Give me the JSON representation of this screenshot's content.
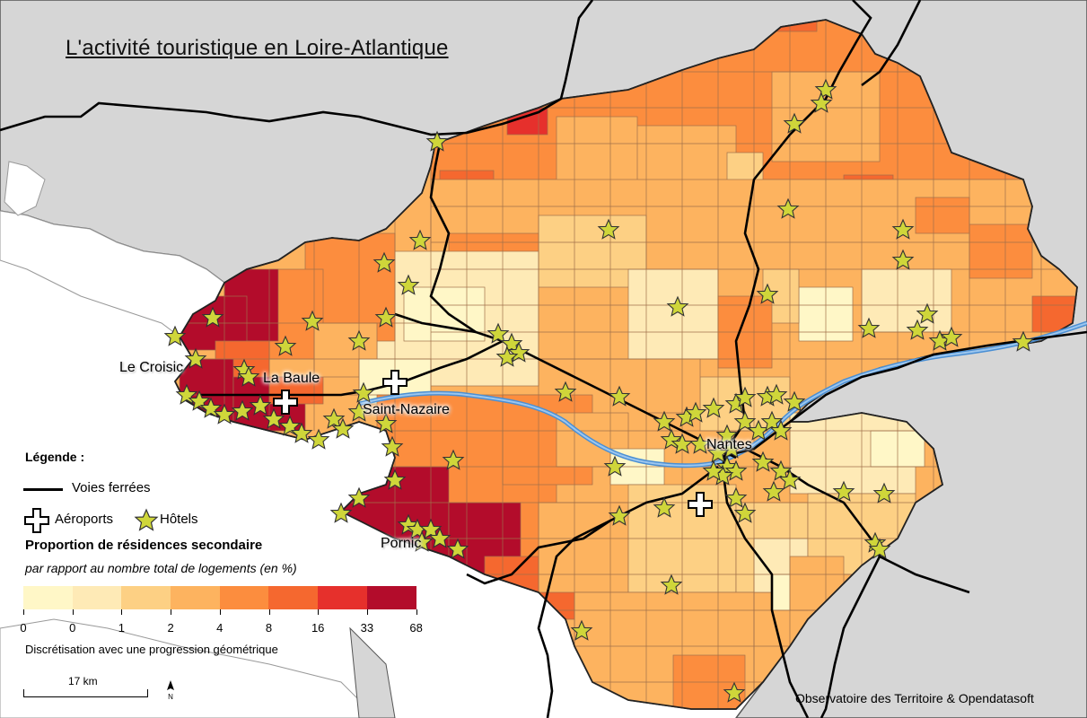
{
  "title": "L'activité touristique en Loire-Atlantique",
  "legend": {
    "heading": "Légende :",
    "railways_label": "Voies ferrées",
    "airports_label": "Aéroports",
    "hotels_label": "Hôtels",
    "proportion_title": "Proportion de résidences secondaire",
    "proportion_subtitle": "par rapport au nombre total de logements (en %)",
    "class_breaks": [
      "0",
      "0",
      "1",
      "2",
      "4",
      "8",
      "16",
      "33",
      "68"
    ],
    "class_colors": [
      "#fff7c7",
      "#feeab6",
      "#fdd084",
      "#fdb35f",
      "#fc8d3e",
      "#f5682f",
      "#e6302c",
      "#b30c2b"
    ],
    "discretisation_note": "Discrétisation avec une progression géométrique"
  },
  "scale_bar": {
    "label": "17 km"
  },
  "north_arrow": {
    "label": "N"
  },
  "credit": "Observatoire des Territoire & Opendatasoft",
  "cities": {
    "le_croisic": "Le Croisic",
    "la_baule": "La Baule",
    "saint_nazaire": "Saint-Nazaire",
    "nantes": "Nantes",
    "pornic": "Pornic"
  },
  "colors": {
    "sea": "#ffffff",
    "neighbouring_land": "#d6d6d6",
    "river": "#4a8fd4",
    "railway": "#000000",
    "hotel_fill": "#cfd63a",
    "communes_border": "#8a6a50"
  }
}
